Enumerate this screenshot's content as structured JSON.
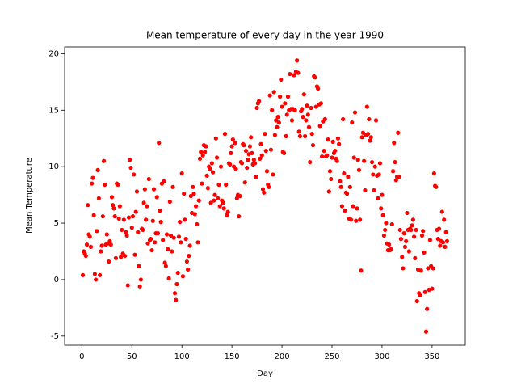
{
  "chart_data": {
    "type": "scatter",
    "title": "Mean temperature of every day in the year 1990",
    "x_label": "Day",
    "y_label": "Mean Temperature",
    "color": "#ff0000",
    "xlim": [
      -17.2,
      383.2
    ],
    "ylim": [
      -5.8,
      20.6
    ],
    "xticks": [
      0,
      50,
      100,
      150,
      200,
      250,
      300,
      350
    ],
    "yticks": [
      -5,
      0,
      5,
      10,
      15,
      20
    ],
    "x": [
      1,
      2,
      3,
      4,
      5,
      6,
      7,
      8,
      9,
      10,
      11,
      12,
      13,
      14,
      15,
      16,
      17,
      18,
      19,
      20,
      21,
      22,
      23,
      24,
      25,
      26,
      27,
      28,
      29,
      30,
      31,
      32,
      33,
      34,
      35,
      36,
      37,
      38,
      39,
      40,
      41,
      42,
      43,
      44,
      45,
      46,
      47,
      48,
      49,
      50,
      51,
      52,
      53,
      54,
      55,
      56,
      57,
      58,
      59,
      60,
      61,
      62,
      63,
      64,
      65,
      66,
      67,
      68,
      69,
      70,
      71,
      72,
      73,
      74,
      75,
      76,
      77,
      78,
      79,
      80,
      81,
      82,
      83,
      84,
      85,
      86,
      87,
      88,
      89,
      90,
      91,
      92,
      93,
      94,
      95,
      96,
      97,
      98,
      99,
      100,
      101,
      102,
      103,
      104,
      105,
      106,
      107,
      108,
      109,
      110,
      111,
      112,
      113,
      114,
      115,
      116,
      117,
      118,
      119,
      120,
      121,
      122,
      123,
      124,
      125,
      126,
      127,
      128,
      129,
      130,
      131,
      132,
      133,
      134,
      135,
      136,
      137,
      138,
      139,
      140,
      141,
      142,
      143,
      144,
      145,
      146,
      147,
      148,
      149,
      150,
      151,
      152,
      153,
      154,
      155,
      156,
      157,
      158,
      159,
      160,
      161,
      162,
      163,
      164,
      165,
      166,
      167,
      168,
      169,
      170,
      171,
      172,
      173,
      174,
      175,
      176,
      177,
      178,
      179,
      180,
      181,
      182,
      183,
      184,
      185,
      186,
      187,
      188,
      189,
      190,
      191,
      192,
      193,
      194,
      195,
      196,
      197,
      198,
      199,
      200,
      201,
      202,
      203,
      204,
      205,
      206,
      207,
      208,
      209,
      210,
      211,
      212,
      213,
      214,
      215,
      216,
      217,
      218,
      219,
      220,
      221,
      222,
      223,
      224,
      225,
      226,
      227,
      228,
      229,
      230,
      231,
      232,
      233,
      234,
      235,
      236,
      237,
      238,
      239,
      240,
      241,
      242,
      243,
      244,
      245,
      246,
      247,
      248,
      249,
      250,
      251,
      252,
      253,
      254,
      255,
      256,
      257,
      258,
      259,
      260,
      261,
      262,
      263,
      264,
      265,
      266,
      267,
      268,
      269,
      270,
      271,
      272,
      273,
      274,
      275,
      276,
      277,
      278,
      279,
      280,
      281,
      282,
      283,
      284,
      285,
      286,
      287,
      288,
      289,
      290,
      291,
      292,
      293,
      294,
      295,
      296,
      297,
      298,
      299,
      300,
      301,
      302,
      303,
      304,
      305,
      306,
      307,
      308,
      309,
      310,
      311,
      312,
      313,
      314,
      315,
      316,
      317,
      318,
      319,
      320,
      321,
      322,
      323,
      324,
      325,
      326,
      327,
      328,
      329,
      330,
      331,
      332,
      333,
      334,
      335,
      336,
      337,
      338,
      339,
      340,
      341,
      342,
      343,
      344,
      345,
      346,
      347,
      348,
      349,
      350,
      351,
      352,
      353,
      354,
      355,
      356,
      357,
      358,
      359,
      360,
      361,
      362,
      363,
      364,
      365
    ],
    "values": [
      0.4,
      2.5,
      2.3,
      2.1,
      3.1,
      6.6,
      4.0,
      3.8,
      2.9,
      8.5,
      9.0,
      5.7,
      0.5,
      0.0,
      4.3,
      9.7,
      7.2,
      0.4,
      2.5,
      3.0,
      5.6,
      10.5,
      8.4,
      3.1,
      4.0,
      3.2,
      1.6,
      3.4,
      3.1,
      7.3,
      6.6,
      6.3,
      5.6,
      1.9,
      8.5,
      8.4,
      5.4,
      6.5,
      2.0,
      4.4,
      2.3,
      5.3,
      2.1,
      4.2,
      3.9,
      -0.5,
      5.5,
      10.6,
      9.9,
      4.6,
      5.6,
      9.3,
      2.2,
      6.0,
      7.8,
      4.2,
      1.2,
      -0.6,
      0.0,
      4.5,
      4.4,
      6.8,
      8.0,
      5.3,
      6.5,
      3.2,
      8.9,
      3.5,
      3.6,
      2.6,
      5.2,
      8.0,
      3.3,
      4.1,
      7.3,
      4.1,
      12.1,
      6.1,
      5.1,
      8.5,
      3.5,
      8.7,
      1.5,
      1.2,
      4.0,
      2.7,
      0.1,
      6.9,
      3.9,
      2.5,
      8.2,
      3.7,
      -1.2,
      -1.8,
      -0.4,
      0.6,
      3.8,
      5.1,
      3.3,
      9.4,
      0.3,
      7.6,
      5.3,
      3.6,
      1.6,
      0.9,
      2.1,
      3.0,
      7.4,
      5.9,
      8.2,
      7.6,
      5.8,
      6.5,
      4.9,
      3.3,
      7.0,
      10.7,
      11.3,
      8.5,
      11.0,
      11.9,
      11.3,
      11.8,
      9.2,
      8.1,
      10.0,
      9.8,
      6.8,
      10.3,
      9.5,
      7.0,
      7.5,
      12.5,
      10.8,
      7.2,
      8.4,
      6.5,
      10.0,
      7.0,
      6.8,
      6.3,
      12.9,
      8.4,
      5.7,
      6.0,
      10.3,
      10.2,
      11.2,
      11.8,
      12.4,
      10.0,
      12.1,
      9.8,
      7.2,
      7.5,
      5.6,
      7.4,
      10.4,
      10.3,
      12.0,
      11.9,
      8.6,
      11.4,
      9.9,
      10.6,
      11.1,
      11.8,
      12.6,
      11.2,
      10.2,
      10.6,
      10.3,
      9.1,
      15.2,
      15.6,
      15.8,
      10.7,
      12.0,
      11.0,
      8.0,
      7.7,
      12.9,
      11.4,
      9.6,
      8.4,
      8.2,
      16.3,
      11.5,
      15.0,
      9.3,
      16.6,
      12.8,
      14.1,
      13.5,
      14.4,
      13.9,
      16.2,
      17.7,
      15.3,
      11.3,
      11.2,
      15.6,
      12.7,
      14.6,
      16.2,
      15.0,
      18.2,
      15.1,
      14.1,
      15.1,
      18.1,
      15.0,
      18.4,
      19.4,
      18.3,
      13.1,
      12.7,
      14.9,
      15.1,
      14.4,
      16.4,
      12.7,
      14.1,
      15.4,
      14.6,
      13.5,
      10.4,
      15.2,
      12.9,
      11.9,
      18.0,
      17.9,
      15.3,
      17.1,
      16.9,
      15.5,
      13.6,
      15.6,
      10.9,
      14.0,
      11.4,
      14.2,
      10.9,
      11.0,
      12.4,
      7.8,
      9.6,
      8.9,
      10.8,
      12.2,
      11.2,
      11.4,
      10.7,
      10.5,
      12.5,
      12.0,
      8.7,
      8.2,
      6.5,
      14.2,
      9.4,
      6.1,
      7.7,
      7.6,
      9.1,
      5.4,
      8.2,
      5.3,
      13.9,
      6.5,
      10.8,
      14.8,
      5.2,
      6.3,
      10.6,
      9.7,
      5.3,
      0.8,
      12.6,
      13.0,
      10.5,
      7.9,
      12.8,
      15.3,
      12.9,
      14.2,
      12.3,
      12.6,
      10.4,
      9.3,
      7.9,
      10.0,
      14.1,
      9.2,
      7.2,
      9.3,
      10.3,
      6.3,
      7.5,
      5.7,
      3.9,
      4.4,
      5.0,
      3.2,
      2.6,
      3.1,
      2.6,
      2.7,
      4.9,
      9.6,
      12.1,
      10.4,
      8.8,
      9.1,
      13.0,
      9.1,
      4.4,
      3.6,
      2.0,
      1.0,
      4.1,
      2.9,
      3.4,
      5.9,
      4.4,
      2.5,
      4.5,
      4.4,
      4.8,
      5.3,
      3.8,
      1.9,
      4.4,
      -1.9,
      0.9,
      -1.2,
      -1.4,
      0.8,
      3.9,
      4.3,
      2.4,
      -1.1,
      -4.6,
      -2.6,
      1.0,
      -0.9,
      3.5,
      1.2,
      -0.8,
      1.0,
      9.4,
      8.3,
      8.2,
      4.4,
      3.6,
      4.5,
      3.0,
      3.4,
      6.0,
      3.3,
      5.3,
      2.9,
      4.2,
      3.4
    ]
  }
}
